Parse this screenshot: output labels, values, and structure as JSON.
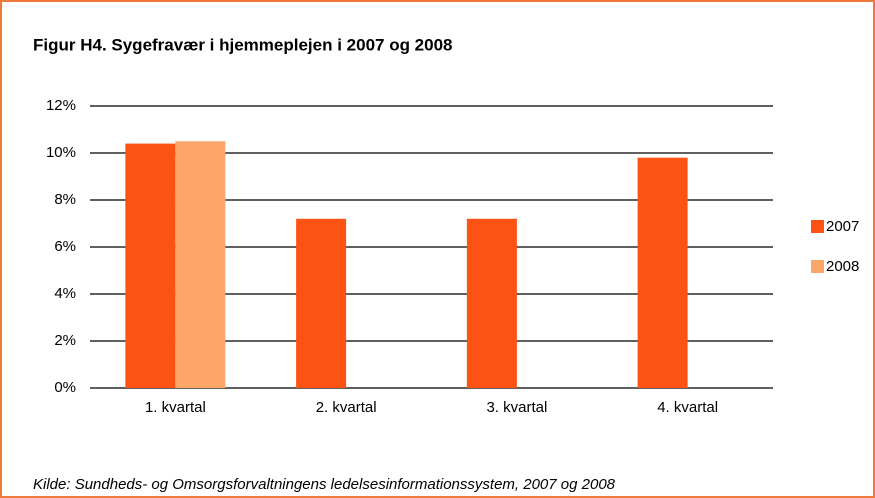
{
  "chart_data": {
    "type": "bar",
    "title": "Figur H4. Sygefravær i hjemmeplejen i 2007 og 2008",
    "categories": [
      "1. kvartal",
      "2. kvartal",
      "3. kvartal",
      "4. kvartal"
    ],
    "series": [
      {
        "name": "2007",
        "color": "#fc5214",
        "values": [
          10.4,
          7.2,
          7.2,
          9.8
        ]
      },
      {
        "name": "2008",
        "color": "#fca66a",
        "values": [
          10.5,
          null,
          null,
          null
        ]
      }
    ],
    "ylim": [
      0,
      12
    ],
    "yticks": [
      {
        "value": 0,
        "label": "0%"
      },
      {
        "value": 2,
        "label": "2%"
      },
      {
        "value": 4,
        "label": "4%"
      },
      {
        "value": 6,
        "label": "6%"
      },
      {
        "value": 8,
        "label": "8%"
      },
      {
        "value": 10,
        "label": "10%"
      },
      {
        "value": 12,
        "label": "12%"
      }
    ],
    "grid": true,
    "legend": "right",
    "source": "Kilde: Sundheds- og Omsorgsforvaltningens ledelsesinformationssystem, 2007 og 2008"
  }
}
